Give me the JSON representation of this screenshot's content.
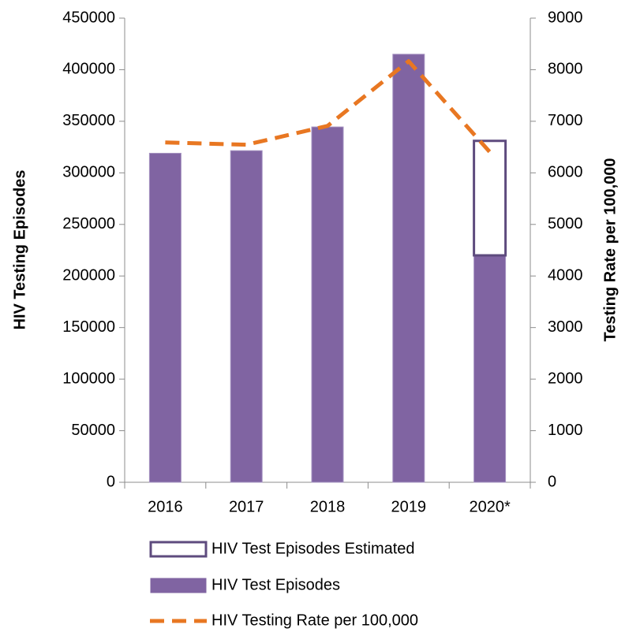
{
  "chart_data": {
    "type": "bar",
    "categories": [
      "2016",
      "2017",
      "2018",
      "2019",
      "2020*"
    ],
    "series": [
      {
        "name": "HIV Test Episodes",
        "type": "bar",
        "color": "#8064a2",
        "values": [
          319000,
          321500,
          344500,
          415000,
          220000
        ]
      },
      {
        "name": "HIV Test Episodes Estimated",
        "type": "bar",
        "stacked": true,
        "color": "#ffffff",
        "edge_color": "#5e4b7e",
        "values": [
          null,
          null,
          null,
          null,
          111000
        ]
      },
      {
        "name": "HIV Testing Rate per 100,000",
        "type": "line",
        "axis": "y2",
        "color": "#e87722",
        "dashed": true,
        "values": [
          6590,
          6545,
          6910,
          8165,
          6405
        ]
      }
    ],
    "ylabel": "HIV Testing Episodes",
    "y2label": "Testing Rate per 100,000",
    "ylim": [
      0,
      450000
    ],
    "yticks": [
      0,
      50000,
      100000,
      150000,
      200000,
      250000,
      300000,
      350000,
      400000,
      450000
    ],
    "y2lim": [
      0,
      9000
    ],
    "y2ticks": [
      0,
      1000,
      2000,
      3000,
      4000,
      5000,
      6000,
      7000,
      8000,
      9000
    ],
    "legend": "bottom"
  }
}
